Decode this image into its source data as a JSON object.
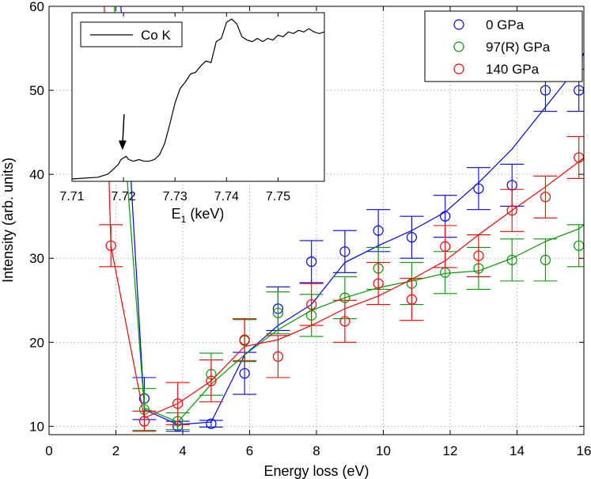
{
  "chart_data": [
    {
      "type": "scatter",
      "xlabel": "Energy loss (eV)",
      "ylabel": "Intensity (arb. units)",
      "xlim": [
        0,
        16
      ],
      "ylim": [
        9,
        60
      ],
      "xticks": [
        "0",
        "2",
        "4",
        "6",
        "8",
        "10",
        "12",
        "14",
        "16"
      ],
      "xtick_values": [
        0,
        2,
        4,
        6,
        8,
        10,
        12,
        14,
        16
      ],
      "yticks": [
        "10",
        "20",
        "30",
        "40",
        "50",
        "60"
      ],
      "ytick_values": [
        10,
        20,
        30,
        40,
        50,
        60
      ],
      "grid": true,
      "legend_position": "top-right",
      "series": [
        {
          "name": "0 GPa",
          "color": "#0000ff",
          "x": [
            2.85,
            3.85,
            4.85,
            5.85,
            6.85,
            7.85,
            8.85,
            9.85,
            10.85,
            11.85,
            12.85,
            13.85,
            14.85,
            15.85
          ],
          "y": [
            13.3,
            10.0,
            10.3,
            16.3,
            24.0,
            29.6,
            30.8,
            33.3,
            32.5,
            35.0,
            38.3,
            38.7,
            50.0,
            50.0
          ],
          "err": [
            2.5,
            0.6,
            0.4,
            2.5,
            2.6,
            2.5,
            2.5,
            2.5,
            2.5,
            2.5,
            2.5,
            2.5,
            2.5,
            2.5
          ],
          "fit_x": [
            2.15,
            2.85,
            3.85,
            4.85,
            5.85,
            6.85,
            7.85,
            8.85,
            9.85,
            10.85,
            11.85,
            12.85,
            13.85,
            14.85,
            15.85,
            16.0
          ],
          "fit_y": [
            60.0,
            12.0,
            10.2,
            10.5,
            18.5,
            22.0,
            24.5,
            29.5,
            31.5,
            33.3,
            35.5,
            39.0,
            43.0,
            48.0,
            53.0,
            54.5
          ]
        },
        {
          "name": "97(R) GPa",
          "color": "#009900",
          "x": [
            2.85,
            3.85,
            4.85,
            5.85,
            6.85,
            7.85,
            8.85,
            9.85,
            10.85,
            11.85,
            12.85,
            13.85,
            14.85,
            15.85
          ],
          "y": [
            12.0,
            10.6,
            16.2,
            20.2,
            23.5,
            23.2,
            25.3,
            28.8,
            27.0,
            28.3,
            28.8,
            29.8,
            29.8,
            31.5
          ],
          "err": [
            2.5,
            1.0,
            2.5,
            2.5,
            2.5,
            2.5,
            2.5,
            2.5,
            2.5,
            2.5,
            2.5,
            2.5,
            2.5,
            2.5
          ],
          "fit_x": [
            1.95,
            2.85,
            3.85,
            4.85,
            5.85,
            6.85,
            7.85,
            8.85,
            9.85,
            10.85,
            11.85,
            12.85,
            13.85,
            14.85,
            15.85,
            16.0
          ],
          "fit_y": [
            60.0,
            12.2,
            10.5,
            15.0,
            18.5,
            21.5,
            23.8,
            25.3,
            26.5,
            27.3,
            28.2,
            28.5,
            30.0,
            32.0,
            33.5,
            34.0
          ]
        },
        {
          "name": "140 GPa",
          "color": "#ff0000",
          "x": [
            1.85,
            2.85,
            3.85,
            4.85,
            5.85,
            6.85,
            7.85,
            8.85,
            9.85,
            10.85,
            11.85,
            12.85,
            13.85,
            14.85,
            15.85
          ],
          "y": [
            31.5,
            10.6,
            12.7,
            15.4,
            20.3,
            18.3,
            24.5,
            22.5,
            27.0,
            25.1,
            31.4,
            30.3,
            35.7,
            37.3,
            42.0
          ],
          "err": [
            2.5,
            1.2,
            2.5,
            2.5,
            2.5,
            2.5,
            2.5,
            2.5,
            2.5,
            2.5,
            2.5,
            2.5,
            2.5,
            2.5,
            2.5
          ],
          "fit_x": [
            1.85,
            2.85,
            3.85,
            4.85,
            5.85,
            6.85,
            7.85,
            8.85,
            9.85,
            10.85,
            11.85,
            12.85,
            13.85,
            14.85,
            15.85,
            16.0
          ],
          "fit_y": [
            31.5,
            11.0,
            12.7,
            15.4,
            19.5,
            20.3,
            22.0,
            24.0,
            25.5,
            27.5,
            29.7,
            32.8,
            35.7,
            38.5,
            41.5,
            42.0
          ]
        }
      ],
      "lead_line": {
        "color": "#ff0000",
        "x": [
          1.65,
          1.85
        ],
        "y": [
          60.0,
          31.5
        ]
      }
    },
    {
      "type": "line",
      "role": "inset",
      "xlabel_main": "E",
      "xlabel_sub": "1",
      "xlabel_tail": " (keV)",
      "xlim": [
        7.71,
        7.759
      ],
      "ylim": [
        0,
        1
      ],
      "xticks": [
        "7.71",
        "7.72",
        "7.73",
        "7.74",
        "7.75"
      ],
      "xtick_values": [
        7.71,
        7.72,
        7.73,
        7.74,
        7.75
      ],
      "legend": "Co K",
      "series": [
        {
          "name": "Co K",
          "color": "#000000",
          "x": [
            7.71,
            7.715,
            7.717,
            7.718,
            7.719,
            7.7195,
            7.72,
            7.7205,
            7.721,
            7.722,
            7.723,
            7.724,
            7.725,
            7.726,
            7.727,
            7.728,
            7.729,
            7.73,
            7.731,
            7.732,
            7.733,
            7.734,
            7.735,
            7.736,
            7.737,
            7.738,
            7.739,
            7.74,
            7.741,
            7.742,
            7.743,
            7.744,
            7.745,
            7.746,
            7.747,
            7.748,
            7.749,
            7.75,
            7.751,
            7.752,
            7.753,
            7.754,
            7.755,
            7.756,
            7.757,
            7.758,
            7.759
          ],
          "y": [
            0.0,
            0.01,
            0.03,
            0.06,
            0.09,
            0.12,
            0.13,
            0.14,
            0.12,
            0.11,
            0.12,
            0.11,
            0.11,
            0.12,
            0.15,
            0.22,
            0.34,
            0.47,
            0.56,
            0.6,
            0.65,
            0.66,
            0.7,
            0.73,
            0.72,
            0.85,
            0.87,
            0.97,
            0.99,
            0.96,
            0.88,
            0.86,
            0.85,
            0.87,
            0.85,
            0.87,
            0.86,
            0.89,
            0.88,
            0.91,
            0.9,
            0.92,
            0.91,
            0.93,
            0.91,
            0.9,
            0.91
          ]
        }
      ],
      "arrow_target": {
        "x": 7.7195,
        "y": 0.14
      }
    }
  ]
}
